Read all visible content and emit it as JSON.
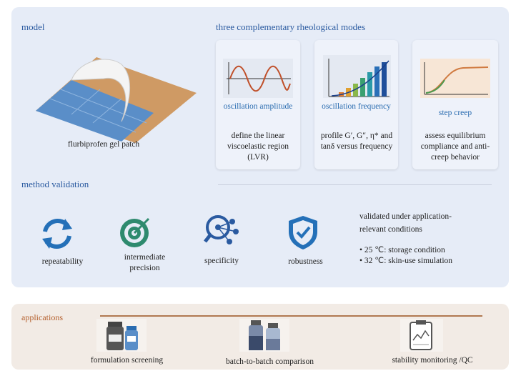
{
  "model": {
    "title": "model",
    "caption": "flurbiprofen gel patch"
  },
  "modes": {
    "title": "three complementary rheological modes",
    "items": [
      {
        "name": "oscillation amplitude",
        "desc": "define the linear viscoelastic region (LVR)"
      },
      {
        "name": "oscillation frequency",
        "desc": "profile G′, G″, η* and tanδ versus frequency"
      },
      {
        "name": "step creep",
        "desc": "assess equilibrium compliance and anti-creep behavior"
      }
    ]
  },
  "validation": {
    "title": "method validation",
    "items": [
      "repeatability",
      "intermediate precision",
      "specificity",
      "robustness"
    ],
    "conditions_title": "validated under application-relevant conditions",
    "conditions": [
      "• 25 ℃: storage condition",
      "• 32 ℃: skin-use simulation"
    ]
  },
  "applications": {
    "title": "applications",
    "items": [
      "formulation screening",
      "batch-to-batch comparison",
      "stability monitoring /QC"
    ]
  }
}
